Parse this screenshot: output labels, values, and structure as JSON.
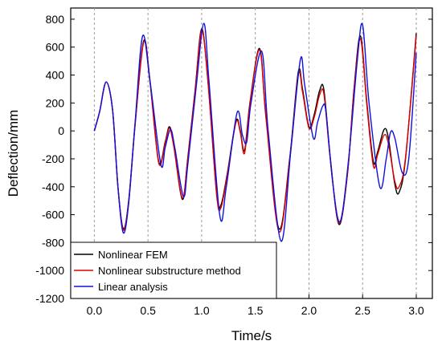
{
  "chart_data": {
    "type": "line",
    "xlabel": "Time/s",
    "ylabel": "Deflection/mm",
    "xlim": [
      -0.22,
      3.15
    ],
    "ylim": [
      -1200,
      880
    ],
    "x_ticks": [
      0.0,
      0.5,
      1.0,
      1.5,
      2.0,
      2.5,
      3.0
    ],
    "x_tick_labels": [
      "0.0",
      "0.5",
      "1.0",
      "1.5",
      "2.0",
      "2.5",
      "3.0"
    ],
    "y_ticks": [
      800,
      600,
      400,
      200,
      0,
      -200,
      -400,
      -600,
      -800,
      -1000,
      -1200
    ],
    "y_tick_labels": [
      "800",
      "600",
      "400",
      "200",
      "0",
      "-200",
      "-400",
      "-600",
      "-800",
      "-1000",
      "-1200"
    ],
    "vertical_grid": true,
    "grid_style": "dashed",
    "legend_position": "bottom-left",
    "series": [
      {
        "name": "Nonlinear FEM",
        "color": "#000000",
        "points": [
          [
            0.0,
            0
          ],
          [
            0.05,
            140
          ],
          [
            0.11,
            350
          ],
          [
            0.17,
            150
          ],
          [
            0.22,
            -400
          ],
          [
            0.27,
            -700
          ],
          [
            0.32,
            -500
          ],
          [
            0.38,
            50
          ],
          [
            0.46,
            645
          ],
          [
            0.52,
            350
          ],
          [
            0.6,
            -220
          ],
          [
            0.66,
            -80
          ],
          [
            0.7,
            30
          ],
          [
            0.74,
            -100
          ],
          [
            0.82,
            -490
          ],
          [
            0.87,
            -200
          ],
          [
            0.94,
            300
          ],
          [
            1.0,
            730
          ],
          [
            1.06,
            350
          ],
          [
            1.14,
            -450
          ],
          [
            1.18,
            -530
          ],
          [
            1.24,
            -300
          ],
          [
            1.32,
            70
          ],
          [
            1.36,
            0
          ],
          [
            1.4,
            -140
          ],
          [
            1.45,
            200
          ],
          [
            1.54,
            590
          ],
          [
            1.6,
            100
          ],
          [
            1.72,
            -700
          ],
          [
            1.82,
            -200
          ],
          [
            1.9,
            420
          ],
          [
            1.94,
            300
          ],
          [
            2.0,
            30
          ],
          [
            2.05,
            120
          ],
          [
            2.1,
            290
          ],
          [
            2.14,
            290
          ],
          [
            2.2,
            -200
          ],
          [
            2.28,
            -670
          ],
          [
            2.36,
            -300
          ],
          [
            2.42,
            300
          ],
          [
            2.48,
            680
          ],
          [
            2.54,
            200
          ],
          [
            2.6,
            -220
          ],
          [
            2.64,
            -150
          ],
          [
            2.7,
            10
          ],
          [
            2.74,
            -50
          ],
          [
            2.8,
            -380
          ],
          [
            2.84,
            -440
          ],
          [
            2.9,
            -200
          ],
          [
            3.0,
            700
          ]
        ]
      },
      {
        "name": "Nonlinear substructure method",
        "color": "#e00000",
        "points": [
          [
            0.0,
            0
          ],
          [
            0.05,
            140
          ],
          [
            0.11,
            350
          ],
          [
            0.17,
            150
          ],
          [
            0.22,
            -400
          ],
          [
            0.27,
            -710
          ],
          [
            0.32,
            -510
          ],
          [
            0.38,
            40
          ],
          [
            0.46,
            635
          ],
          [
            0.52,
            340
          ],
          [
            0.6,
            -230
          ],
          [
            0.66,
            -90
          ],
          [
            0.7,
            20
          ],
          [
            0.74,
            -110
          ],
          [
            0.82,
            -480
          ],
          [
            0.87,
            -210
          ],
          [
            0.94,
            290
          ],
          [
            1.0,
            720
          ],
          [
            1.06,
            340
          ],
          [
            1.14,
            -460
          ],
          [
            1.18,
            -550
          ],
          [
            1.24,
            -310
          ],
          [
            1.32,
            60
          ],
          [
            1.36,
            -10
          ],
          [
            1.4,
            -160
          ],
          [
            1.45,
            190
          ],
          [
            1.54,
            580
          ],
          [
            1.6,
            90
          ],
          [
            1.72,
            -720
          ],
          [
            1.82,
            -210
          ],
          [
            1.9,
            400
          ],
          [
            1.94,
            280
          ],
          [
            2.0,
            20
          ],
          [
            2.05,
            100
          ],
          [
            2.1,
            260
          ],
          [
            2.14,
            260
          ],
          [
            2.2,
            -210
          ],
          [
            2.28,
            -660
          ],
          [
            2.36,
            -300
          ],
          [
            2.42,
            290
          ],
          [
            2.48,
            660
          ],
          [
            2.54,
            180
          ],
          [
            2.6,
            -250
          ],
          [
            2.64,
            -170
          ],
          [
            2.7,
            -30
          ],
          [
            2.74,
            -90
          ],
          [
            2.8,
            -360
          ],
          [
            2.84,
            -400
          ],
          [
            2.9,
            -190
          ],
          [
            3.0,
            680
          ]
        ]
      },
      {
        "name": "Linear analysis",
        "color": "#1010e0",
        "points": [
          [
            0.0,
            0
          ],
          [
            0.05,
            140
          ],
          [
            0.11,
            350
          ],
          [
            0.17,
            150
          ],
          [
            0.22,
            -400
          ],
          [
            0.27,
            -730
          ],
          [
            0.32,
            -520
          ],
          [
            0.38,
            60
          ],
          [
            0.45,
            680
          ],
          [
            0.52,
            350
          ],
          [
            0.62,
            -240
          ],
          [
            0.66,
            -120
          ],
          [
            0.71,
            10
          ],
          [
            0.75,
            -120
          ],
          [
            0.83,
            -470
          ],
          [
            0.87,
            -250
          ],
          [
            0.95,
            320
          ],
          [
            1.02,
            770
          ],
          [
            1.07,
            340
          ],
          [
            1.17,
            -610
          ],
          [
            1.23,
            -400
          ],
          [
            1.33,
            130
          ],
          [
            1.38,
            -30
          ],
          [
            1.42,
            -80
          ],
          [
            1.46,
            200
          ],
          [
            1.56,
            570
          ],
          [
            1.62,
            0
          ],
          [
            1.74,
            -790
          ],
          [
            1.83,
            -150
          ],
          [
            1.92,
            510
          ],
          [
            1.96,
            330
          ],
          [
            2.04,
            -50
          ],
          [
            2.08,
            60
          ],
          [
            2.13,
            180
          ],
          [
            2.16,
            130
          ],
          [
            2.22,
            -360
          ],
          [
            2.29,
            -650
          ],
          [
            2.37,
            -200
          ],
          [
            2.45,
            500
          ],
          [
            2.5,
            760
          ],
          [
            2.56,
            200
          ],
          [
            2.66,
            -400
          ],
          [
            2.72,
            -200
          ],
          [
            2.76,
            -10
          ],
          [
            2.8,
            -50
          ],
          [
            2.87,
            -300
          ],
          [
            2.93,
            -200
          ],
          [
            3.0,
            560
          ]
        ]
      }
    ]
  }
}
